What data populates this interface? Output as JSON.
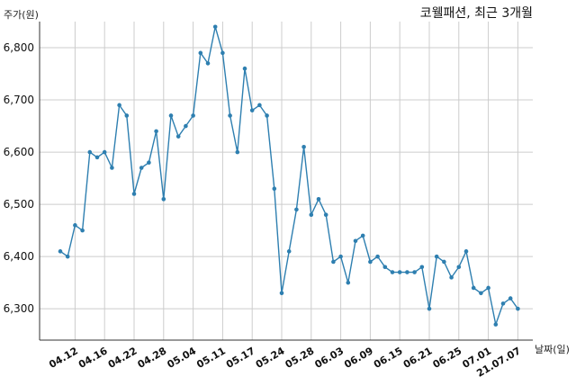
{
  "chart_data": {
    "type": "line",
    "title": "코웰패션, 최근 3개월",
    "ylabel": "주가(원)",
    "xlabel": "날짜(일)",
    "ylim": [
      6240,
      6850
    ],
    "y_ticks": [
      "6,300",
      "6,400",
      "6,500",
      "6,600",
      "6,700",
      "6,800"
    ],
    "y_tick_values": [
      6300,
      6400,
      6500,
      6600,
      6700,
      6800
    ],
    "x_ticks": [
      "04.12",
      "04.16",
      "04.22",
      "04.28",
      "05.04",
      "05.11",
      "05.17",
      "05.24",
      "05.28",
      "06.03",
      "06.09",
      "06.15",
      "06.21",
      "06.25",
      "07.01",
      "21.07.07"
    ],
    "x_tick_indices": [
      2,
      6,
      10,
      14,
      18,
      22,
      26,
      30,
      34,
      38,
      42,
      46,
      50,
      54,
      58,
      62
    ],
    "grid": true,
    "series": [
      {
        "color": "#2e7fb0",
        "values": [
          6410,
          6400,
          6460,
          6450,
          6600,
          6590,
          6600,
          6570,
          6690,
          6670,
          6520,
          6570,
          6580,
          6640,
          6510,
          6670,
          6630,
          6650,
          6670,
          6790,
          6770,
          6840,
          6790,
          6670,
          6600,
          6760,
          6680,
          6690,
          6670,
          6530,
          6330,
          6410,
          6490,
          6610,
          6480,
          6510,
          6480,
          6390,
          6400,
          6350,
          6430,
          6440,
          6390,
          6400,
          6380,
          6370,
          6370,
          6370,
          6370,
          6380,
          6300,
          6400,
          6390,
          6360,
          6380,
          6410,
          6340,
          6330,
          6340,
          6270,
          6310,
          6320,
          6300
        ]
      }
    ]
  }
}
